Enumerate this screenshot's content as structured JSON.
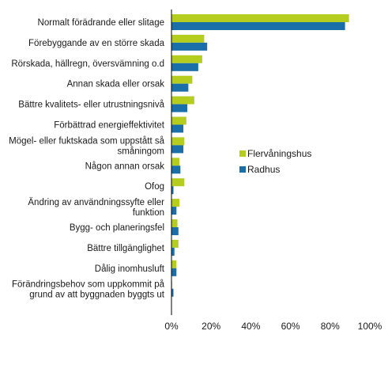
{
  "chart_data": {
    "type": "bar",
    "orientation": "horizontal",
    "categories": [
      [
        "Normalt förädrande eller slitage"
      ],
      [
        "Förebyggande av en större skada"
      ],
      [
        "Rörskada, hällregn, översvämning o.d"
      ],
      [
        "Annan skada eller orsak"
      ],
      [
        "Bättre kvalitets- eller utrustningsnivå"
      ],
      [
        "Förbättrad energieffektivitet"
      ],
      [
        "Mögel- eller fuktskada som uppstått så",
        "småningom"
      ],
      [
        "Någon annan orsak"
      ],
      [
        "Ofog"
      ],
      [
        "Ändring av användningssyfte eller",
        "funktion"
      ],
      [
        "Bygg- och planeringsfel"
      ],
      [
        "Bättre tillgänglighet"
      ],
      [
        "Dålig inomhusluft"
      ],
      [
        "Förändringsbehov som uppkommit på",
        "grund av att byggnaden byggts ut"
      ]
    ],
    "series": [
      {
        "name": "Flervåningshus",
        "color": "#b5cd1f",
        "values": [
          89.5,
          16.5,
          15.5,
          10.5,
          11.5,
          7.5,
          6.5,
          4.0,
          6.5,
          4.0,
          3.0,
          3.5,
          2.5,
          0.3
        ]
      },
      {
        "name": "Radhus",
        "color": "#1a6fa8",
        "values": [
          87.5,
          18.0,
          13.5,
          8.5,
          8.0,
          6.0,
          6.0,
          4.5,
          1.0,
          2.5,
          3.5,
          1.5,
          2.5,
          1.0
        ]
      }
    ],
    "xlim": [
      0,
      100
    ],
    "xticks": [
      "0%",
      "20%",
      "40%",
      "60%",
      "80%",
      "100%"
    ],
    "xlabel": "",
    "ylabel": "",
    "title": "",
    "grid": false,
    "legend_position": "right"
  }
}
